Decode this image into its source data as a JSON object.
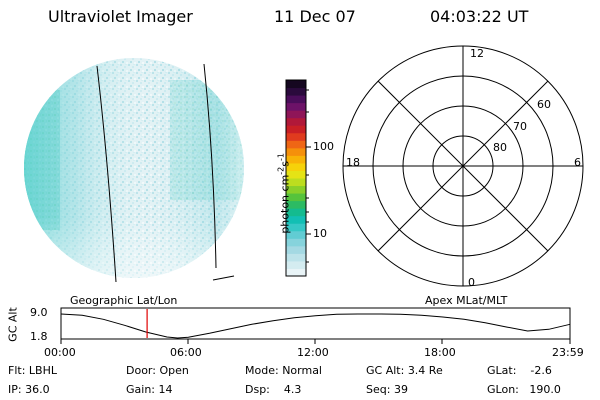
{
  "header": {
    "instrument": "Ultraviolet Imager",
    "date": "11 Dec 07",
    "time": "04:03:22 UT"
  },
  "colorbar": {
    "label": "photon cm-2s-1",
    "ticks": [
      "100",
      "10"
    ],
    "colors": [
      "#e9f4f7",
      "#d4ecf0",
      "#bde3ea",
      "#a4d9e3",
      "#86d3dc",
      "#61ccd3",
      "#36c8c6",
      "#12bfb4",
      "#14bb8f",
      "#2cbb63",
      "#56c33c",
      "#8ad02a",
      "#bddd1f",
      "#e5e315",
      "#f6d20a",
      "#f8b307",
      "#f5900b",
      "#ef6615",
      "#e03b1e",
      "#c91f25",
      "#b11839",
      "#8f1558",
      "#6d1268",
      "#4a0d5a",
      "#2a0a3c",
      "#150720"
    ]
  },
  "polar": {
    "mlt_labels": [
      "12",
      "18",
      "6",
      "0"
    ],
    "lat_labels": [
      "60",
      "70",
      "80"
    ]
  },
  "timeline": {
    "left_title": "Geographic Lat/Lon",
    "right_title": "Apex MLat/MLT",
    "ylabel": "GC Alt",
    "ytick_top": "9.0",
    "ytick_bottom": "1.8",
    "xticks": [
      "00:00",
      "06:00",
      "12:00",
      "18:00",
      "23:59"
    ]
  },
  "chart_data": {
    "type": "line",
    "title": "",
    "xlabel": "",
    "ylabel": "GC Alt",
    "xlim": [
      0,
      24
    ],
    "ylim": [
      1.8,
      9.0
    ],
    "x": [
      0,
      1,
      2,
      3,
      4,
      5,
      5.5,
      6,
      7,
      8,
      9,
      10,
      11,
      12,
      13,
      14,
      15,
      16,
      17,
      18,
      19,
      20,
      21,
      22,
      23,
      24
    ],
    "series": [
      {
        "values": [
          9.0,
          8.6,
          7.4,
          5.6,
          3.6,
          2.1,
          1.8,
          2.0,
          3.2,
          4.6,
          5.9,
          7.0,
          7.9,
          8.5,
          8.9,
          9.0,
          9.0,
          8.9,
          8.6,
          8.1,
          7.4,
          6.4,
          5.1,
          3.9,
          4.4,
          5.9
        ]
      }
    ],
    "marker_time": 4.06
  },
  "info": {
    "row1": [
      {
        "label": "Flt:",
        "value": "LBHL"
      },
      {
        "label": "Door:",
        "value": "Open"
      },
      {
        "label": "Mode:",
        "value": "Normal"
      },
      {
        "label": "GC Alt:",
        "value": "3.4 Re"
      },
      {
        "label": "GLat:",
        "value": "-2.6"
      }
    ],
    "row2": [
      {
        "label": "IP:",
        "value": "36.0"
      },
      {
        "label": "Gain:",
        "value": "14"
      },
      {
        "label": "Dsp:",
        "value": "4.3"
      },
      {
        "label": "Seq:",
        "value": "39"
      },
      {
        "label": "GLon:",
        "value": "190.0"
      }
    ]
  }
}
